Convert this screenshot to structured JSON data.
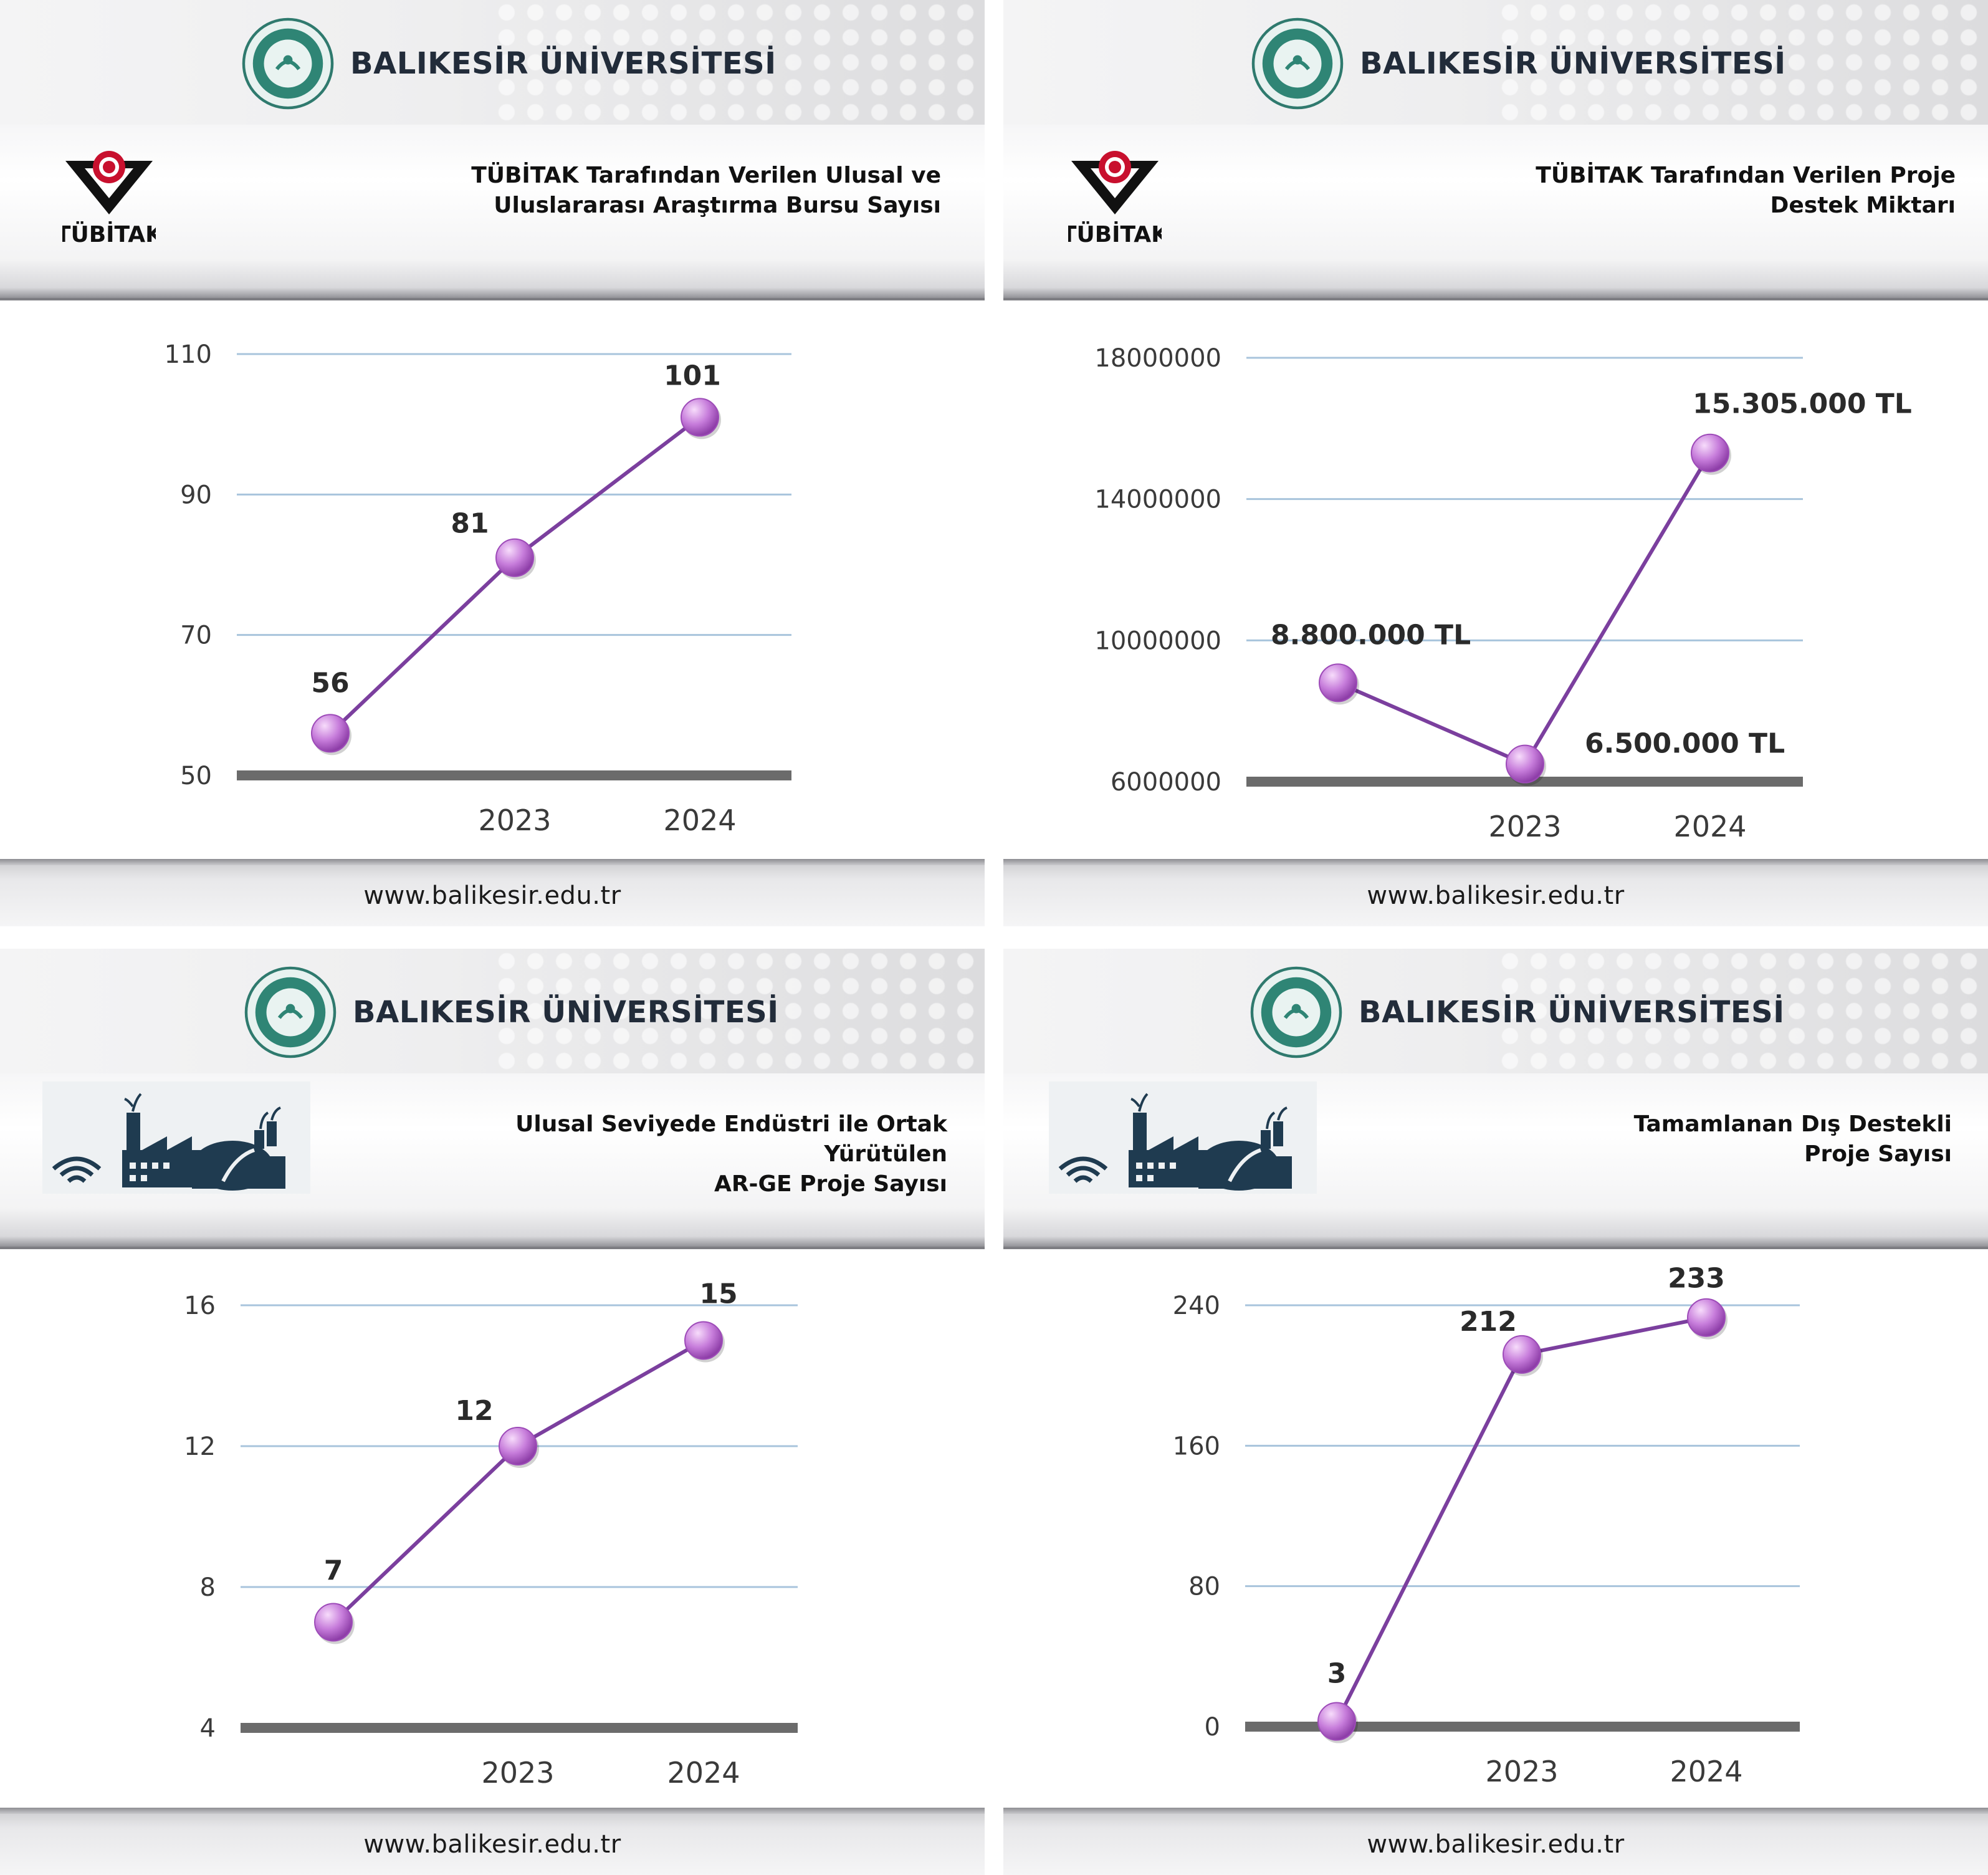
{
  "university": {
    "name": "BALIKESİR ÜNİVERSİTESİ"
  },
  "tubitak_label": "TÜBİTAK",
  "footer": {
    "url": "www.balikesir.edu.tr"
  },
  "colors": {
    "line": "#7b3f9e",
    "marker": "#c77ddb",
    "grid": "#a8c4dc",
    "baseline": "#6b6b6b"
  },
  "panels": [
    {
      "title_line1": "TÜBİTAK Tarafından Verilen Ulusal ve",
      "title_line2": "Uluslararası Araştırma Bursu Sayısı",
      "icon": "tubitak-logo"
    },
    {
      "title_line1": "TÜBİTAK Tarafından Verilen Proje",
      "title_line2": "Destek Miktarı",
      "icon": "tubitak-logo"
    },
    {
      "title_line1": "Ulusal Seviyede Endüstri ile Ortak Yürütülen",
      "title_line2": "AR-GE Proje Sayısı",
      "icon": "industry-icon"
    },
    {
      "title_line1": "Tamamlanan Dış Destekli",
      "title_line2": "Proje Sayısı",
      "icon": "industry-icon"
    }
  ],
  "chart_data": [
    {
      "type": "line",
      "title": "TÜBİTAK Tarafından Verilen Ulusal ve Uluslararası Araştırma Bursu Sayısı",
      "categories": [
        "",
        "2023",
        "2024"
      ],
      "values": [
        56,
        81,
        101
      ],
      "labels": [
        "56",
        "81",
        "101"
      ],
      "yticks": [
        50,
        70,
        90,
        110
      ],
      "ylim": [
        50,
        110
      ]
    },
    {
      "type": "line",
      "title": "TÜBİTAK Tarafından Verilen Proje Destek Miktarı",
      "categories": [
        "",
        "2023",
        "2024"
      ],
      "values": [
        8800000,
        6500000,
        15305000
      ],
      "labels": [
        "8.800.000 TL",
        "6.500.000 TL",
        "15.305.000 TL"
      ],
      "yticks": [
        6000000,
        10000000,
        14000000,
        18000000
      ],
      "ylim": [
        6000000,
        18000000
      ]
    },
    {
      "type": "line",
      "title": "Ulusal Seviyede Endüstri ile Ortak Yürütülen AR-GE Proje Sayısı",
      "categories": [
        "",
        "2023",
        "2024"
      ],
      "values": [
        7,
        12,
        15
      ],
      "labels": [
        "7",
        "12",
        "15"
      ],
      "yticks": [
        4,
        8,
        12,
        16
      ],
      "ylim": [
        4,
        16
      ]
    },
    {
      "type": "line",
      "title": "Tamamlanan Dış Destekli Proje Sayısı",
      "categories": [
        "",
        "2023",
        "2024"
      ],
      "values": [
        3,
        212,
        233
      ],
      "labels": [
        "3",
        "212",
        "233"
      ],
      "yticks": [
        0,
        80,
        160,
        240
      ],
      "ylim": [
        0,
        240
      ]
    }
  ]
}
